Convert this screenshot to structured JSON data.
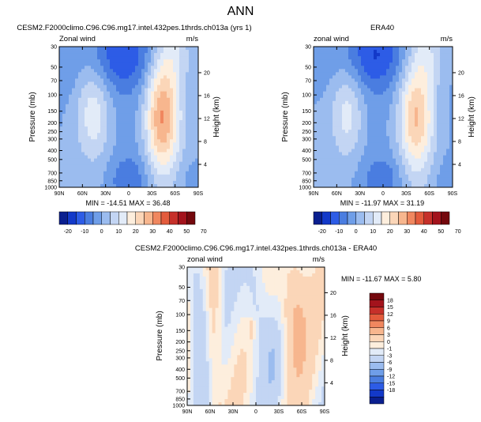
{
  "page": {
    "title": "ANN"
  },
  "colors": {
    "a": [
      "#0a1f8f",
      "#1339c9",
      "#2d5ce6",
      "#4a7de0",
      "#6f9ee8",
      "#9bbcef",
      "#c3d5f3",
      "#e2ebf8",
      "#fdeedd",
      "#fbd6b8",
      "#f7b68e",
      "#f0875f",
      "#e35b3c",
      "#c6302a",
      "#a3131c",
      "#74080d"
    ],
    "d": [
      "#0a1f8f",
      "#1339c9",
      "#2d5ce6",
      "#4a7de0",
      "#6f9ee8",
      "#9bbcef",
      "#c3d5f3",
      "#e2ebf8",
      "#fdeedd",
      "#fbd6b8",
      "#f7b68e",
      "#f0875f",
      "#e35b3c",
      "#c6302a",
      "#a3131c",
      "#74080d"
    ]
  },
  "colorbar_a": {
    "labels": [
      "-20",
      "-10",
      "0",
      "10",
      "20",
      "30",
      "40",
      "50",
      "70"
    ]
  },
  "colorbar_d": {
    "labels": [
      "18",
      "15",
      "12",
      "9",
      "6",
      "3",
      "0",
      "-1",
      "-3",
      "-6",
      "-9",
      "-12",
      "-15",
      "-18"
    ]
  },
  "chart_data": [
    {
      "type": "heatmap",
      "title": "CESM2.F2000climo.C96.C96.mg17.intel.432pes.1thrds.ch013a (yrs 1)",
      "variable_label": "Zonal wind",
      "units": "m/s",
      "ylabel": "Pressure (mb)",
      "y2label": "Height (km)",
      "x_ticks": [
        "90N",
        "60N",
        "30N",
        "0",
        "30S",
        "60S",
        "90S"
      ],
      "y_ticks": [
        "30",
        "50",
        "70",
        "100",
        "150",
        "200",
        "250",
        "300",
        "400",
        "500",
        "700",
        "850",
        "1000"
      ],
      "y2_ticks": [
        "20",
        "16",
        "12",
        "8",
        "4"
      ],
      "min_max_text": "MIN = -14.51  MAX = 36.48",
      "min": -14.51,
      "max": 36.48,
      "colorbar": "a"
    },
    {
      "type": "heatmap",
      "title": "ERA40",
      "variable_label": "zonal wind",
      "units": "m/s",
      "ylabel": "Pressure (mb)",
      "y2label": "Height (km)",
      "x_ticks": [
        "90N",
        "60N",
        "30N",
        "0",
        "30S",
        "60S",
        "90S"
      ],
      "y_ticks": [
        "30",
        "50",
        "70",
        "100",
        "150",
        "200",
        "250",
        "300",
        "400",
        "500",
        "700",
        "850",
        "1000"
      ],
      "y2_ticks": [
        "20",
        "16",
        "12",
        "8",
        "4"
      ],
      "min_max_text": "MIN = -11.97  MAX = 31.19",
      "min": -11.97,
      "max": 31.19,
      "colorbar": "a"
    },
    {
      "type": "heatmap",
      "title": "CESM2.F2000climo.C96.C96.mg17.intel.432pes.1thrds.ch013a - ERA40",
      "variable_label": "zonal wind",
      "units": "m/s",
      "ylabel": "Pressure (mb)",
      "y2label": "Height (km)",
      "x_ticks": [
        "90N",
        "60N",
        "30N",
        "0",
        "30S",
        "60S",
        "90S"
      ],
      "y_ticks": [
        "30",
        "50",
        "70",
        "100",
        "150",
        "200",
        "250",
        "300",
        "400",
        "500",
        "700",
        "850",
        "1000"
      ],
      "y2_ticks": [
        "20",
        "16",
        "12",
        "8",
        "4"
      ],
      "min_max_text": "MIN = -11.67  MAX =   5.80",
      "min": -11.67,
      "max": 5.8,
      "colorbar": "d"
    }
  ]
}
